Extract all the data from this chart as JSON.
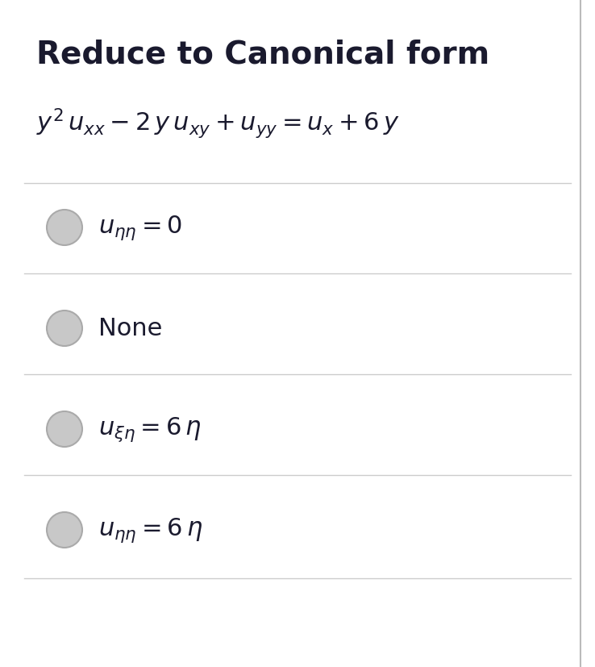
{
  "title": "Reduce to Canonical form",
  "title_fontsize": 28,
  "title_fontweight": "bold",
  "equation": "$y^2\\,u_{xx} - 2\\,y\\,u_{xy} + u_{yy} = u_x + 6\\,y$",
  "eq_fontsize": 22,
  "options": [
    {
      "label": "$u_{\\eta\\eta} = 0$",
      "is_math": true
    },
    {
      "label": "None",
      "is_math": false
    },
    {
      "label": "$u_{\\xi\\eta} = 6\\,\\eta$",
      "is_math": true
    },
    {
      "label": "$u_{\\eta\\eta} = 6\\,\\eta$",
      "is_math": true
    }
  ],
  "option_fontsize": 22,
  "bg_color": "#ffffff",
  "text_color": "#1a1a2e",
  "divider_color": "#cccccc",
  "circle_color": "#c8c8c8",
  "circle_edge_color": "#aaaaaa",
  "border_color": "#bbbbbb"
}
